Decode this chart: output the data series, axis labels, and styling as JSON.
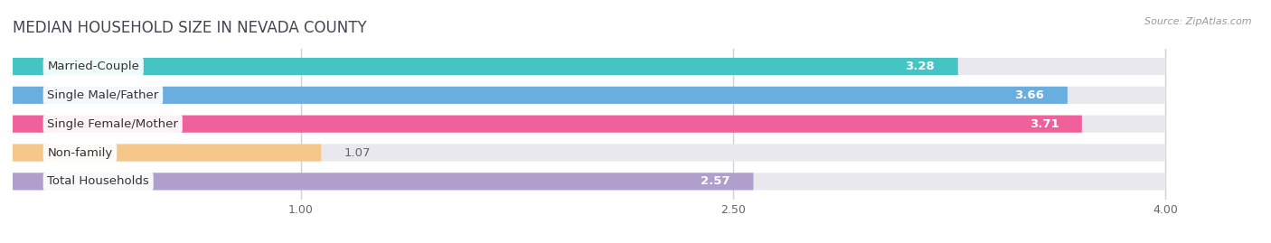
{
  "title": "MEDIAN HOUSEHOLD SIZE IN NEVADA COUNTY",
  "source": "Source: ZipAtlas.com",
  "categories": [
    "Married-Couple",
    "Single Male/Father",
    "Single Female/Mother",
    "Non-family",
    "Total Households"
  ],
  "values": [
    3.28,
    3.66,
    3.71,
    1.07,
    2.57
  ],
  "bar_colors": [
    "#45c4c4",
    "#6aaee0",
    "#f0609a",
    "#f5c88a",
    "#b09fcc"
  ],
  "xlim": [
    0.0,
    4.3
  ],
  "xdata_max": 4.0,
  "xticks": [
    1.0,
    2.5,
    4.0
  ],
  "label_fontsize": 9.5,
  "value_fontsize": 9.5,
  "title_fontsize": 12,
  "title_color": "#444455",
  "background_color": "#ffffff",
  "bar_background_color": "#e8e8ee",
  "grid_color": "#d0d0d8"
}
